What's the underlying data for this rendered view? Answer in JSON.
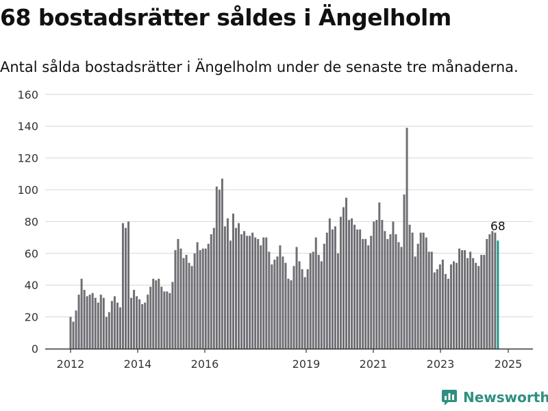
{
  "header": {
    "title": "68 bostadsrätter såldes i Ängelholm",
    "subtitle": "Antal sålda bostadsrätter i Ängelholm under de senaste tre månaderna."
  },
  "brand": {
    "name": "Newsworthy",
    "color": "#2e8f7f"
  },
  "colors": {
    "bar": "#6f6e74",
    "highlight": "#1b9a8c",
    "grid": "#d6d6d6",
    "axis": "#333333"
  },
  "chart_data": {
    "type": "bar",
    "title": "",
    "xlabel": "",
    "ylabel": "",
    "ylim": [
      0,
      160
    ],
    "yticks": [
      0,
      20,
      40,
      60,
      80,
      100,
      120,
      140,
      160
    ],
    "xticks": [
      "2012",
      "2014",
      "2016",
      "2019",
      "2021",
      "2023",
      "2025"
    ],
    "grid": true,
    "highlight_label": "68",
    "series": [
      {
        "values": [
          20,
          17,
          24,
          34,
          44,
          37,
          33,
          34,
          35,
          32,
          29,
          34,
          32,
          20,
          23,
          30,
          33,
          29,
          26,
          79,
          76,
          80,
          32,
          37,
          33,
          31,
          28,
          29,
          34,
          39,
          44,
          43,
          44,
          39,
          36,
          36,
          35,
          42,
          62,
          69,
          63,
          57,
          59,
          54,
          52,
          60,
          67,
          62,
          63,
          63,
          66,
          72,
          76,
          102,
          100,
          107,
          77,
          82,
          68,
          85,
          76,
          79,
          72,
          74,
          71,
          71,
          73,
          70,
          69,
          65,
          70,
          70,
          61,
          53,
          56,
          58,
          65,
          58,
          54,
          44,
          43,
          52,
          64,
          55,
          50,
          45,
          50,
          60,
          61,
          70,
          59,
          55,
          66,
          73,
          82,
          75,
          77,
          60,
          83,
          89,
          95,
          81,
          82,
          78,
          75,
          75,
          69,
          69,
          65,
          71,
          80,
          81,
          92,
          81,
          74,
          69,
          72,
          80,
          72,
          67,
          64,
          97,
          139,
          78,
          73,
          58,
          66,
          73,
          73,
          70,
          61,
          61,
          48,
          50,
          53,
          56,
          47,
          44,
          53,
          55,
          54,
          63,
          62,
          62,
          57,
          61,
          57,
          54,
          52,
          59,
          59,
          69,
          72,
          74,
          73,
          68
        ]
      }
    ]
  }
}
